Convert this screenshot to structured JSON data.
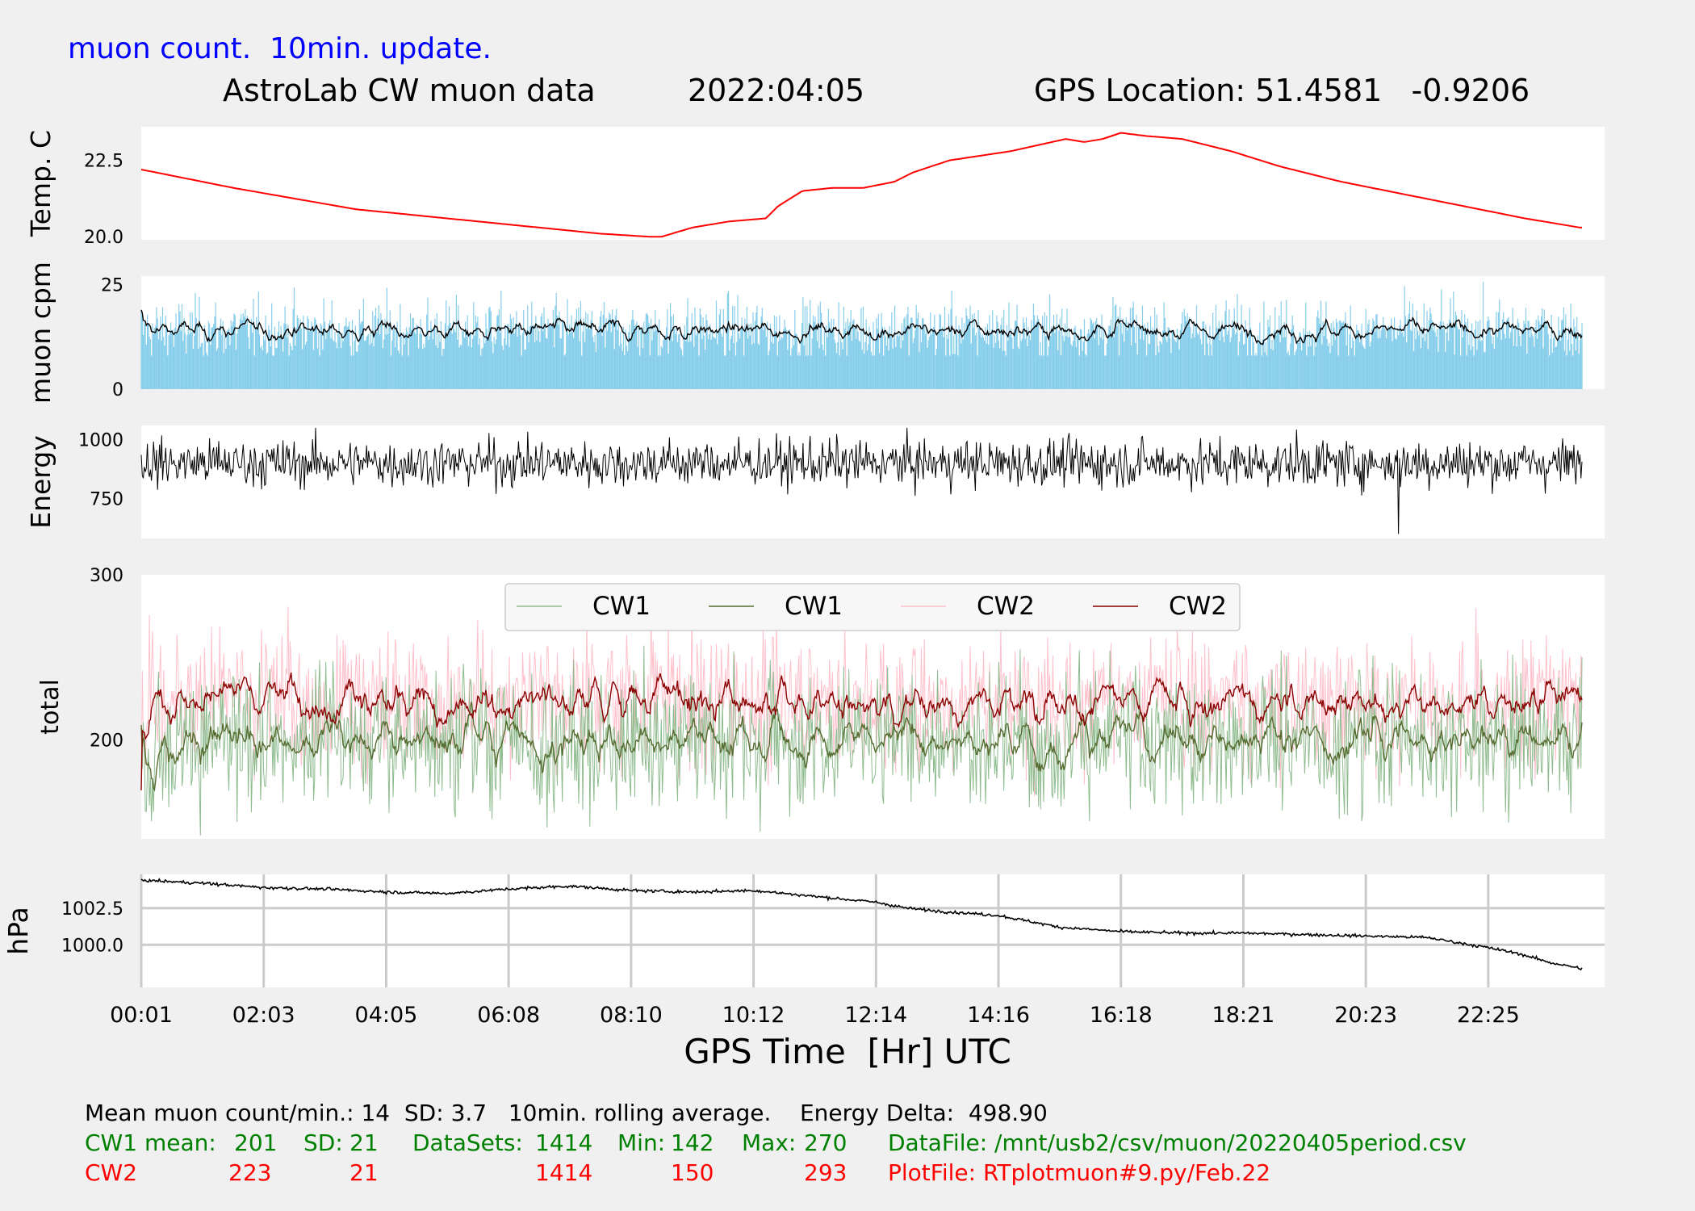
{
  "header": {
    "update_note": "muon count.  10min. update.",
    "title": "AstroLab CW muon data",
    "date": "2022:04:05",
    "gps": "GPS Location: 51.4581   -0.9206"
  },
  "x_axis_label": "GPS Time  [Hr] UTC",
  "footer": {
    "summary": {
      "mean_label": "Mean muon count/min.: 14",
      "sd": "SD: 3.7",
      "rolling": "10min. rolling average.",
      "energy_delta": "Energy Delta:  498.90"
    },
    "cw1": {
      "label": "CW1 mean:",
      "mean": "201",
      "sd_label": "SD:",
      "sd": "21",
      "datasets_label": "DataSets:",
      "datasets": "1414",
      "min_label": "Min:",
      "min": "142",
      "max_label": "Max:",
      "max": "270",
      "file": "DataFile: /mnt/usb2/csv/muon/20220405period.csv"
    },
    "cw2": {
      "label": "CW2",
      "mean": "223",
      "sd": "21",
      "datasets": "1414",
      "min": "150",
      "max": "293",
      "file": "PlotFile: RTplotmuon#9.py/Feb.22"
    }
  },
  "colors": {
    "temperature": "#ff0000",
    "muon_bars": "#87ceeb",
    "rolling": "#000000",
    "cw1_raw": "#8fbc8f",
    "cw1_avg": "#556b2f",
    "cw2_raw": "#ffc0cb",
    "cw2_avg": "#8b0000",
    "update_note": "#0000ff",
    "footer_cw1": "#008000",
    "footer_cw2": "#ff0000"
  },
  "chart_data": [
    {
      "type": "line",
      "ylabel": "Temp. C",
      "ylim": [
        19.9,
        23.6
      ],
      "yticks": [
        "20.0",
        "22.5"
      ],
      "ytick_values": [
        20.0,
        22.5
      ],
      "x_hours": [
        0.0,
        1.5,
        3.5,
        5.5,
        7.5,
        8.3,
        8.5,
        9.0,
        9.6,
        10.2,
        10.4,
        10.8,
        11.3,
        11.8,
        12.3,
        12.6,
        13.2,
        14.2,
        15.1,
        15.4,
        15.7,
        16.0,
        16.4,
        17.0,
        17.8,
        18.6,
        19.6,
        20.6,
        21.6,
        22.6,
        23.5
      ],
      "values": [
        22.2,
        21.6,
        20.9,
        20.5,
        20.1,
        20.0,
        20.0,
        20.3,
        20.5,
        20.6,
        21.0,
        21.5,
        21.6,
        21.6,
        21.8,
        22.1,
        22.5,
        22.8,
        23.2,
        23.1,
        23.2,
        23.4,
        23.3,
        23.2,
        22.8,
        22.3,
        21.8,
        21.4,
        21.0,
        20.6,
        20.3
      ],
      "grid": false,
      "x_ticks_shown": false
    },
    {
      "type": "bar",
      "ylabel": "muon cpm",
      "ylim": [
        0,
        27
      ],
      "yticks": [
        "0",
        "25"
      ],
      "ytick_values": [
        0,
        25
      ],
      "series": [
        {
          "name": "",
          "kind": "bar",
          "mean": 14,
          "sd": 3.7,
          "min": 8,
          "max": 28,
          "samples": 1414
        },
        {
          "name": "",
          "kind": "line",
          "description_values": "10min. rolling average",
          "mean": 14
        }
      ],
      "grid": false,
      "x_ticks_shown": false
    },
    {
      "type": "line",
      "ylabel": "Energy",
      "ylim": [
        580,
        1060
      ],
      "yticks": [
        "750",
        "1000"
      ],
      "ytick_values": [
        750,
        1000
      ],
      "series": [
        {
          "name": "",
          "mean": 900,
          "spread": 50,
          "min": 600,
          "max": 1050
        }
      ],
      "grid": false,
      "x_ticks_shown": false
    },
    {
      "type": "line",
      "ylabel": "total",
      "ylim": [
        140,
        300
      ],
      "yticks": [
        "200",
        "300"
      ],
      "ytick_values": [
        200,
        300
      ],
      "legend": [
        "CW1",
        "CW1",
        "CW2",
        "CW2"
      ],
      "legend_position": "top",
      "series": [
        {
          "name": "CW1",
          "kind": "raw",
          "mean": 201,
          "sd": 21,
          "min": 142,
          "max": 270,
          "samples": 1414
        },
        {
          "name": "CW1",
          "kind": "rolling",
          "mean": 201
        },
        {
          "name": "CW2",
          "kind": "raw",
          "mean": 223,
          "sd": 21,
          "min": 150,
          "max": 293,
          "samples": 1414
        },
        {
          "name": "CW2",
          "kind": "rolling",
          "mean": 223
        }
      ],
      "grid": false,
      "x_ticks_shown": false
    },
    {
      "type": "line",
      "ylabel": "hPa",
      "xlabel": "GPS Time  [Hr] UTC",
      "ylim": [
        997.1,
        1004.8
      ],
      "yticks": [
        "1000.0",
        "1002.5"
      ],
      "ytick_values": [
        1000.0,
        1002.5
      ],
      "x_hours": [
        0.0,
        1.0,
        2.0,
        3.0,
        4.0,
        5.0,
        6.0,
        7.0,
        8.0,
        9.0,
        10.0,
        10.5,
        11.0,
        12.0,
        12.5,
        13.0,
        14.0,
        14.5,
        15.0,
        16.0,
        17.0,
        18.0,
        19.0,
        20.0,
        21.0,
        22.0,
        22.5,
        23.0,
        23.5
      ],
      "values": [
        1004.4,
        1004.2,
        1003.9,
        1003.8,
        1003.6,
        1003.5,
        1003.8,
        1004.0,
        1003.7,
        1003.6,
        1003.7,
        1003.5,
        1003.3,
        1002.9,
        1002.5,
        1002.3,
        1002.0,
        1001.6,
        1001.2,
        1000.9,
        1000.8,
        1000.8,
        1000.7,
        1000.6,
        1000.5,
        999.8,
        999.4,
        998.8,
        998.4
      ],
      "xlim": [
        0.0,
        23.9
      ],
      "xticks": [
        "00:01",
        "02:03",
        "04:05",
        "06:08",
        "08:10",
        "10:12",
        "12:14",
        "14:16",
        "16:18",
        "18:21",
        "20:23",
        "22:25"
      ],
      "xtick_hours": [
        0.0,
        2.0,
        4.0,
        6.0,
        8.0,
        10.0,
        12.0,
        14.0,
        16.0,
        18.0,
        20.0,
        22.0
      ],
      "grid": true
    }
  ]
}
